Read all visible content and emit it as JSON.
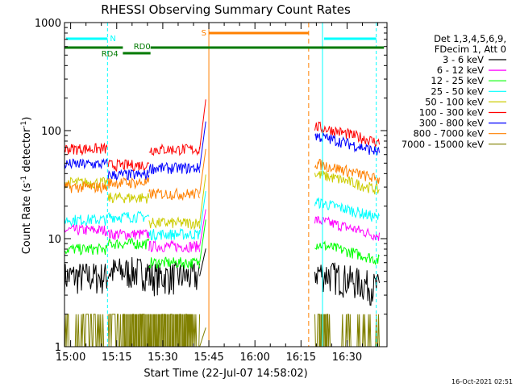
{
  "chart_data": {
    "type": "line",
    "title": "RHESSI Observing Summary Count Rates",
    "xlabel": "Start Time (22-Jul-07 14:58:02)",
    "ylabel_main": "Count Rate (s",
    "ylabel_sup1": "-1",
    "ylabel_mid": " detector",
    "ylabel_sup2": "-1",
    "ylabel_end": ")",
    "y_scale": "log",
    "ylim": [
      1,
      1000
    ],
    "xlim_min": [
      0,
      105
    ],
    "x_tick_labels": [
      "15:00",
      "15:15",
      "15:30",
      "15:45",
      "16:00",
      "16:15",
      "16:30"
    ],
    "x_tick_min": [
      2,
      17,
      32,
      47,
      62,
      77,
      92
    ],
    "y_tick_labels": [
      "1",
      "10",
      "100",
      "1000"
    ],
    "y_tick_vals": [
      1,
      10,
      100,
      1000
    ],
    "legend_header1": "Det 1,3,4,5,6,9,",
    "legend_header2": "FDecim 1, Att 0",
    "series": [
      {
        "name": "3 - 6 keV",
        "color": "#000000"
      },
      {
        "name": "6 - 12 keV",
        "color": "#ff00ff"
      },
      {
        "name": "12 - 25 keV",
        "color": "#00ff00"
      },
      {
        "name": "25 - 50 keV",
        "color": "#00ffff"
      },
      {
        "name": "50 - 100 keV",
        "color": "#cccc00"
      },
      {
        "name": "100 - 300 keV",
        "color": "#ff0000"
      },
      {
        "name": "300 - 800 keV",
        "color": "#0000ff"
      },
      {
        "name": "800 - 7000 keV",
        "color": "#ff8000"
      },
      {
        "name": "7000 - 15000 keV",
        "color": "#808000"
      }
    ],
    "segments": [
      {
        "start": 0,
        "end": 14,
        "levels": [
          4.5,
          12,
          8,
          15,
          33,
          68,
          49,
          30,
          1
        ]
      },
      {
        "start": 14.2,
        "end": 27.5,
        "levels": [
          5,
          11,
          9,
          16,
          24,
          48,
          39,
          33,
          1
        ]
      },
      {
        "start": 27.5,
        "end": 44,
        "levels": [
          4.5,
          8.5,
          6,
          11,
          14,
          67,
          45,
          26,
          1
        ]
      },
      {
        "start": 81.5,
        "end": 102.5,
        "levels": [
          5,
          15,
          9,
          22,
          40,
          110,
          90,
          50,
          1
        ]
      }
    ],
    "annotations": {
      "N": {
        "label": "N"
      },
      "RD0": {
        "label": "RD0"
      },
      "RD4": {
        "label": "RD4"
      },
      "S": {
        "label": "S"
      }
    },
    "timestamp": "16-Oct-2021 02:51"
  }
}
